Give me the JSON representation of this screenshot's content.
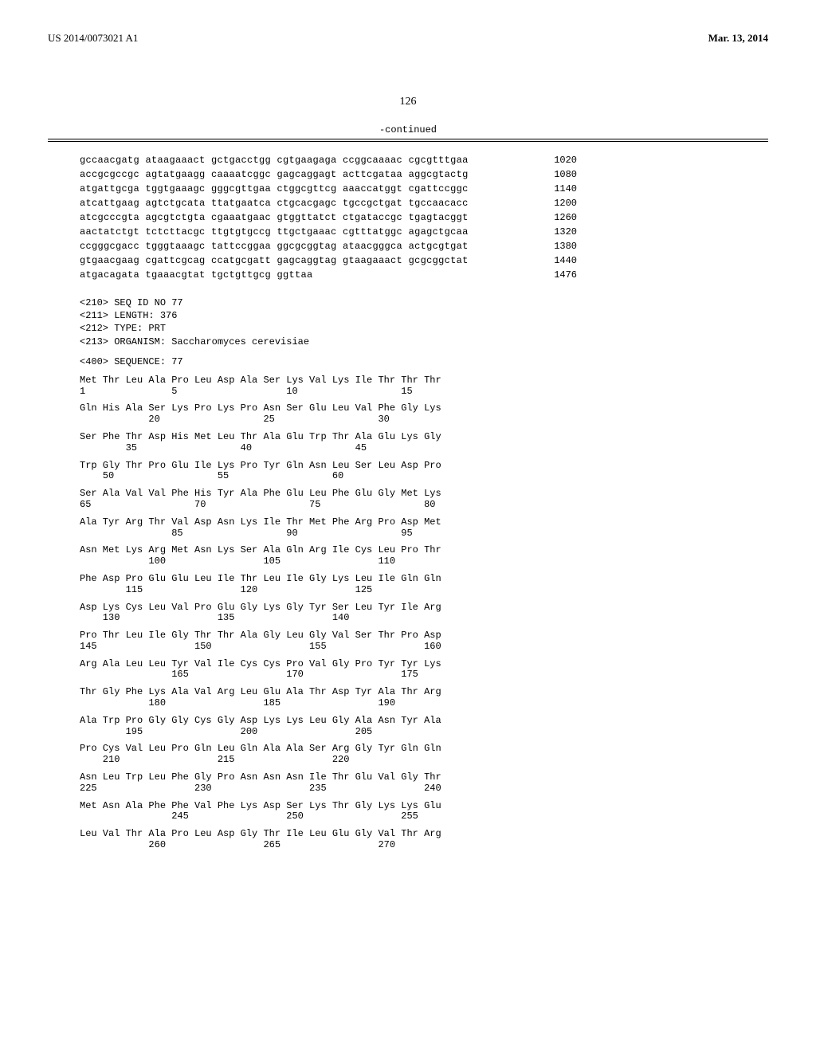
{
  "header": {
    "pub_number": "US 2014/0073021 A1",
    "pub_date": "Mar. 13, 2014"
  },
  "page_number": "126",
  "continued_label": "-continued",
  "dna_rows": [
    {
      "seq": "gccaacgatg ataagaaact gctgacctgg cgtgaagaga ccggcaaaac cgcgtttgaa",
      "pos": "1020"
    },
    {
      "seq": "accgcgccgc agtatgaagg caaaatcggc gagcaggagt acttcgataa aggcgtactg",
      "pos": "1080"
    },
    {
      "seq": "atgattgcga tggtgaaagc gggcgttgaa ctggcgttcg aaaccatggt cgattccggc",
      "pos": "1140"
    },
    {
      "seq": "atcattgaag agtctgcata ttatgaatca ctgcacgagc tgccgctgat tgccaacacc",
      "pos": "1200"
    },
    {
      "seq": "atcgcccgta agcgtctgta cgaaatgaac gtggttatct ctgataccgc tgagtacggt",
      "pos": "1260"
    },
    {
      "seq": "aactatctgt tctcttacgc ttgtgtgccg ttgctgaaac cgtttatggc agagctgcaa",
      "pos": "1320"
    },
    {
      "seq": "ccgggcgacc tgggtaaagc tattccggaa ggcgcggtag ataacgggca actgcgtgat",
      "pos": "1380"
    },
    {
      "seq": "gtgaacgaag cgattcgcag ccatgcgatt gagcaggtag gtaagaaact gcgcggctat",
      "pos": "1440"
    },
    {
      "seq": "atgacagata tgaaacgtat tgctgttgcg ggttaa",
      "pos": "1476"
    }
  ],
  "meta_lines": [
    "<210> SEQ ID NO 77",
    "<211> LENGTH: 376",
    "<212> TYPE: PRT",
    "<213> ORGANISM: Saccharomyces cerevisiae"
  ],
  "sequence_label": "<400> SEQUENCE: 77",
  "protein_rows": [
    {
      "aa": "Met Thr Leu Ala Pro Leu Asp Ala Ser Lys Val Lys Ile Thr Thr Thr",
      "nums": "1               5                   10                  15"
    },
    {
      "aa": "Gln His Ala Ser Lys Pro Lys Pro Asn Ser Glu Leu Val Phe Gly Lys",
      "nums": "            20                  25                  30"
    },
    {
      "aa": "Ser Phe Thr Asp His Met Leu Thr Ala Glu Trp Thr Ala Glu Lys Gly",
      "nums": "        35                  40                  45"
    },
    {
      "aa": "Trp Gly Thr Pro Glu Ile Lys Pro Tyr Gln Asn Leu Ser Leu Asp Pro",
      "nums": "    50                  55                  60"
    },
    {
      "aa": "Ser Ala Val Val Phe His Tyr Ala Phe Glu Leu Phe Glu Gly Met Lys",
      "nums": "65                  70                  75                  80"
    },
    {
      "aa": "Ala Tyr Arg Thr Val Asp Asn Lys Ile Thr Met Phe Arg Pro Asp Met",
      "nums": "                85                  90                  95"
    },
    {
      "aa": "Asn Met Lys Arg Met Asn Lys Ser Ala Gln Arg Ile Cys Leu Pro Thr",
      "nums": "            100                 105                 110"
    },
    {
      "aa": "Phe Asp Pro Glu Glu Leu Ile Thr Leu Ile Gly Lys Leu Ile Gln Gln",
      "nums": "        115                 120                 125"
    },
    {
      "aa": "Asp Lys Cys Leu Val Pro Glu Gly Lys Gly Tyr Ser Leu Tyr Ile Arg",
      "nums": "    130                 135                 140"
    },
    {
      "aa": "Pro Thr Leu Ile Gly Thr Thr Ala Gly Leu Gly Val Ser Thr Pro Asp",
      "nums": "145                 150                 155                 160"
    },
    {
      "aa": "Arg Ala Leu Leu Tyr Val Ile Cys Cys Pro Val Gly Pro Tyr Tyr Lys",
      "nums": "                165                 170                 175"
    },
    {
      "aa": "Thr Gly Phe Lys Ala Val Arg Leu Glu Ala Thr Asp Tyr Ala Thr Arg",
      "nums": "            180                 185                 190"
    },
    {
      "aa": "Ala Trp Pro Gly Gly Cys Gly Asp Lys Lys Leu Gly Ala Asn Tyr Ala",
      "nums": "        195                 200                 205"
    },
    {
      "aa": "Pro Cys Val Leu Pro Gln Leu Gln Ala Ala Ser Arg Gly Tyr Gln Gln",
      "nums": "    210                 215                 220"
    },
    {
      "aa": "Asn Leu Trp Leu Phe Gly Pro Asn Asn Asn Ile Thr Glu Val Gly Thr",
      "nums": "225                 230                 235                 240"
    },
    {
      "aa": "Met Asn Ala Phe Phe Val Phe Lys Asp Ser Lys Thr Gly Lys Lys Glu",
      "nums": "                245                 250                 255"
    },
    {
      "aa": "Leu Val Thr Ala Pro Leu Asp Gly Thr Ile Leu Glu Gly Val Thr Arg",
      "nums": "            260                 265                 270"
    }
  ]
}
